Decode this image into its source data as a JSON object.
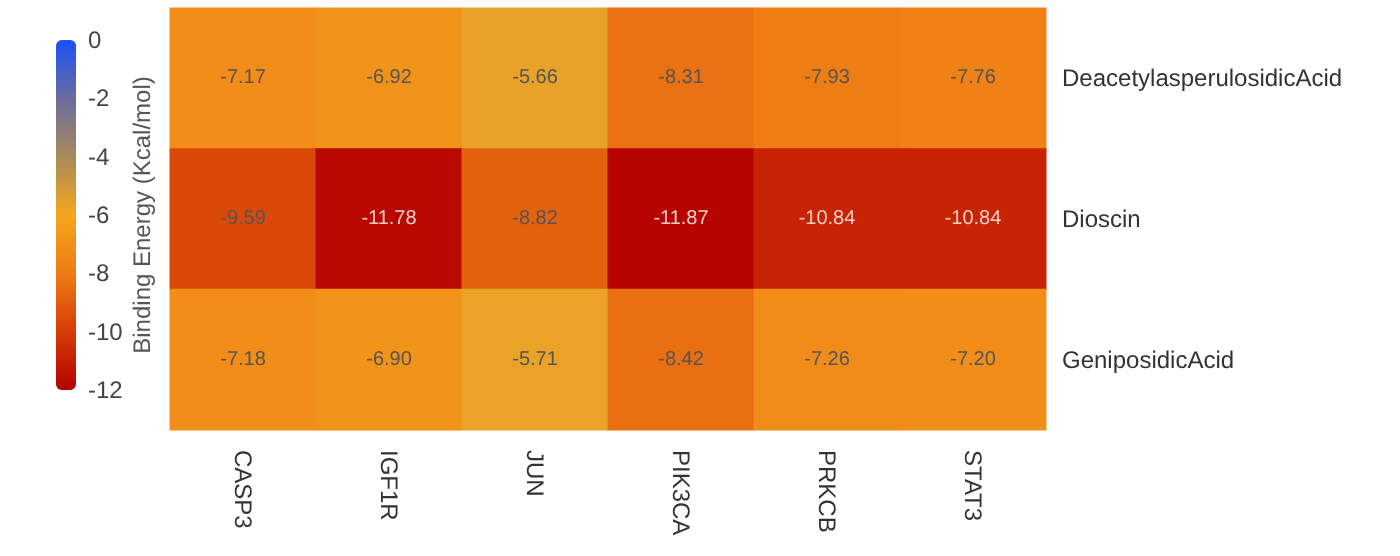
{
  "chart_data": {
    "type": "heatmap",
    "clabel": "Binding Energy (Kcal/mol)",
    "categories": [
      "CASP3",
      "IGF1R",
      "JUN",
      "PIK3CA",
      "PRKCB",
      "STAT3"
    ],
    "y_categories": [
      "DeacetylasperulosidicAcid",
      "Dioscin",
      "GeniposidicAcid"
    ],
    "cells": [
      [
        -7.17,
        -6.92,
        -5.66,
        -8.31,
        -7.93,
        -7.76
      ],
      [
        -9.59,
        -11.78,
        -8.82,
        -11.87,
        -10.84,
        -10.84
      ],
      [
        -7.18,
        -6.9,
        -5.71,
        -8.42,
        -7.26,
        -7.2
      ]
    ],
    "cell_labels": [
      [
        "-7.17",
        "-6.92",
        "-5.66",
        "-8.31",
        "-7.93",
        "-7.76"
      ],
      [
        "-9.59",
        "-11.78",
        "-8.82",
        "-11.87",
        "-10.84",
        "-10.84"
      ],
      [
        "-7.18",
        "-6.90",
        "-5.71",
        "-8.42",
        "-7.26",
        "-7.20"
      ]
    ],
    "clim": [
      -12,
      0
    ],
    "cticks": [
      -12,
      -10,
      -8,
      -6,
      -4,
      -2,
      0
    ]
  }
}
